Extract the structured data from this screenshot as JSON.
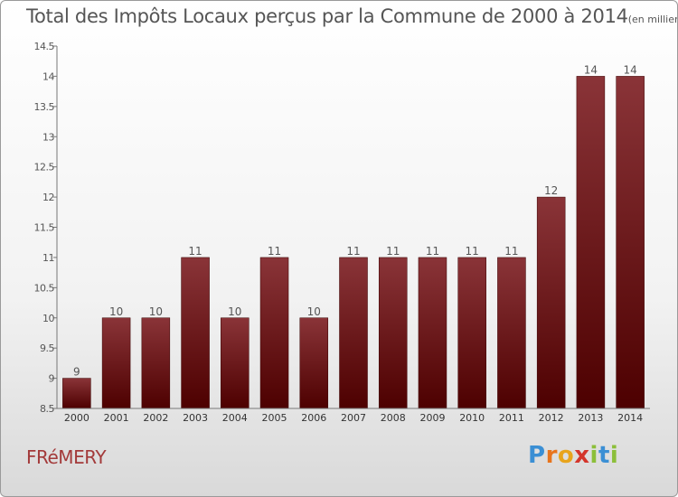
{
  "title": "Total des Impôts Locaux perçus par la Commune de 2000 à 2014",
  "subtitle": "(en milliers d'€)",
  "commune": "FRéMERY",
  "logo": {
    "letters": [
      "P",
      "r",
      "o",
      "x",
      "i",
      "t",
      "i"
    ],
    "colors": [
      "#3b8fd4",
      "#e8741c",
      "#e8a41c",
      "#d4352b",
      "#8cbf3a",
      "#3b8fd4",
      "#8cbf3a"
    ]
  },
  "colors": {
    "bar_top": "#8a3438",
    "bar_bottom": "#4d0000",
    "text": "#555555",
    "commune": "#a33a3a"
  },
  "chart_data": {
    "type": "bar",
    "categories": [
      "2000",
      "2001",
      "2002",
      "2003",
      "2004",
      "2005",
      "2006",
      "2007",
      "2008",
      "2009",
      "2010",
      "2011",
      "2012",
      "2013",
      "2014"
    ],
    "values": [
      9,
      10,
      10,
      11,
      10,
      11,
      10,
      11,
      11,
      11,
      11,
      11,
      12,
      14,
      14
    ],
    "data_labels": [
      "9",
      "10",
      "10",
      "11",
      "10",
      "11",
      "10",
      "11",
      "11",
      "11",
      "11",
      "11",
      "12",
      "14",
      "14"
    ],
    "yticks": [
      "8.5",
      "9",
      "9.5",
      "10",
      "10.5",
      "11",
      "11.5",
      "12",
      "12.5",
      "13",
      "13.5",
      "14",
      "14.5"
    ],
    "ylim": [
      8.5,
      14.5
    ],
    "grid": false
  }
}
